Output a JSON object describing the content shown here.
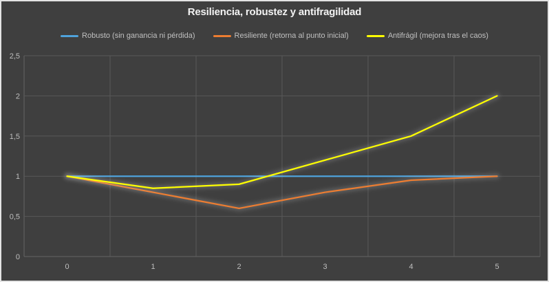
{
  "window": {
    "background_color": "#3F3F3F",
    "border_color": "#E4E4E4"
  },
  "chart_data": {
    "type": "line",
    "title": "Resiliencia, robustez y antifragilidad",
    "xlabel": "",
    "ylabel": "",
    "x": [
      0,
      1,
      2,
      3,
      4,
      5
    ],
    "x_tick_labels": [
      "0",
      "1",
      "2",
      "3",
      "4",
      "5"
    ],
    "y_ticks": [
      0,
      0.5,
      1,
      1.5,
      2,
      2.5
    ],
    "y_tick_labels": [
      "0",
      "0,5",
      "1",
      "1,5",
      "2",
      "2,5"
    ],
    "ylim": [
      0,
      2.5
    ],
    "grid": true,
    "legend_position": "top",
    "series": [
      {
        "name": "Robusto (sin ganancia ni pérdida)",
        "color": "#4FA3DC",
        "values": [
          1,
          1,
          1,
          1,
          1,
          1
        ]
      },
      {
        "name": "Resiliente (retorna al punto inicial)",
        "color": "#ED7D31",
        "values": [
          1,
          0.8,
          0.6,
          0.8,
          0.95,
          1
        ]
      },
      {
        "name": "Antifrágil (mejora tras el caos)",
        "color": "#FFFF00",
        "values": [
          1,
          0.85,
          0.9,
          1.2,
          1.5,
          2
        ]
      }
    ],
    "colors": {
      "gridline": "#585858",
      "axis_line": "#646464",
      "tick_text": "#BFBFBF",
      "title_text": "#F2F2F2",
      "legend_text": "#C0C0C0",
      "line_glow": "#CCCCCC"
    }
  }
}
